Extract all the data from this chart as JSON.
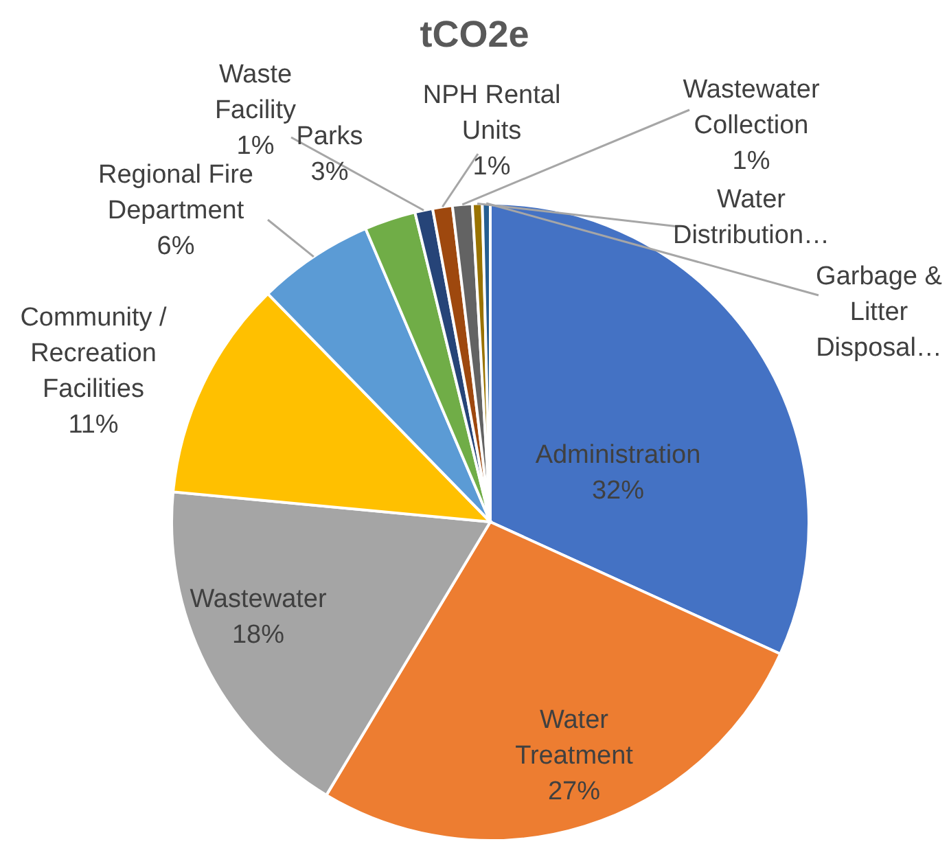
{
  "chart_data": {
    "type": "pie",
    "title": "tCO2e",
    "categories": [
      "Administration",
      "Water\nTreatment",
      "Wastewater",
      "Community /\nRecreation\nFacilities",
      "Regional Fire\nDepartment",
      "Parks",
      "Waste\nFacility",
      "NPH Rental\nUnits",
      "Wastewater\nCollection",
      "Water\nDistribution…",
      "Garbage &\nLitter\nDisposal…"
    ],
    "values": [
      31.8,
      26.8,
      17.9,
      11.2,
      5.9,
      2.6,
      0.9,
      1.0,
      1.0,
      0.5,
      0.4
    ],
    "value_labels": [
      "32%",
      "27%",
      "18%",
      "11%",
      "6%",
      "3%",
      "1%",
      "1%",
      "1%",
      null,
      null
    ],
    "colors": [
      "#4472c4",
      "#ed7d31",
      "#a5a5a5",
      "#ffc000",
      "#5b9bd5",
      "#70ad47",
      "#264478",
      "#9e480e",
      "#636363",
      "#997300",
      "#255e91"
    ],
    "legend": false
  }
}
